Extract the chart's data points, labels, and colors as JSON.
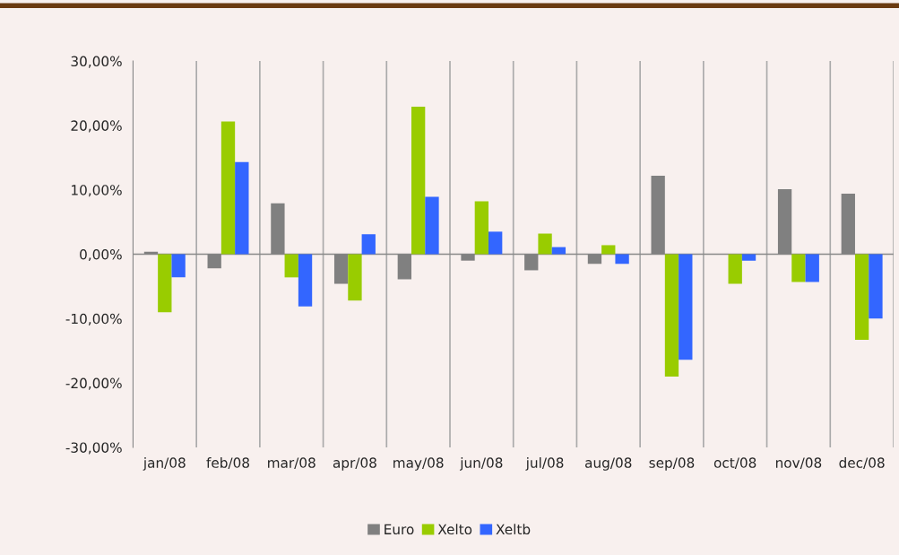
{
  "chart_data": {
    "type": "bar",
    "categories": [
      "jan/08",
      "feb/08",
      "mar/08",
      "apr/08",
      "may/08",
      "jun/08",
      "jul/08",
      "aug/08",
      "sep/08",
      "oct/08",
      "nov/08",
      "dec/08"
    ],
    "series": [
      {
        "name": "Euro",
        "color": "#808080",
        "values": [
          0.4,
          -2.2,
          7.9,
          -4.6,
          -3.9,
          -1.0,
          -2.5,
          -1.5,
          12.2,
          0,
          10.1,
          9.4
        ]
      },
      {
        "name": "Xelto",
        "color": "#99cc00",
        "values": [
          -9.0,
          20.6,
          -3.6,
          -7.2,
          22.9,
          8.2,
          3.2,
          1.4,
          -19.0,
          -4.6,
          -4.3,
          -13.3
        ]
      },
      {
        "name": "Xeltb",
        "color": "#3366ff",
        "values": [
          -3.6,
          14.3,
          -8.1,
          3.1,
          8.9,
          3.5,
          1.1,
          -1.5,
          -16.4,
          -1.0,
          -4.3,
          -10.0
        ]
      }
    ],
    "ylim": [
      -30,
      30
    ],
    "yticks": [
      {
        "value": -30,
        "label": "-30,00%"
      },
      {
        "value": -20,
        "label": "-20,00%"
      },
      {
        "value": -10,
        "label": "-10,00%"
      },
      {
        "value": 0,
        "label": "0,00%"
      },
      {
        "value": 10,
        "label": "10,00%"
      },
      {
        "value": 20,
        "label": "20,00%"
      },
      {
        "value": 30,
        "label": "30,00%"
      }
    ],
    "grid": "x",
    "legend": "bottom"
  }
}
